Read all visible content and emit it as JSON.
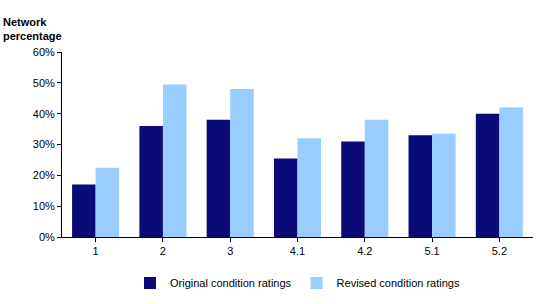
{
  "chart_data": {
    "type": "bar",
    "y_label": "Network percentage",
    "categories": [
      "1",
      "2",
      "3",
      "4.1",
      "4.2",
      "5.1",
      "5.2"
    ],
    "series": [
      {
        "name": "Original condition ratings",
        "color": "#0a0a78",
        "values": [
          17,
          36,
          38,
          25.5,
          31,
          33,
          40
        ]
      },
      {
        "name": "Revised condition ratings",
        "color": "#99ccff",
        "values": [
          22.5,
          49.5,
          48,
          32,
          38,
          33.5,
          42
        ]
      }
    ],
    "ylim": [
      0,
      60
    ],
    "yticks": [
      {
        "value": 0,
        "label": "0%"
      },
      {
        "value": 10,
        "label": "10%"
      },
      {
        "value": 20,
        "label": "20%"
      },
      {
        "value": 30,
        "label": "30%"
      },
      {
        "value": 40,
        "label": "40%"
      },
      {
        "value": 50,
        "label": "50%"
      },
      {
        "value": 60,
        "label": "60%"
      }
    ],
    "grid": false,
    "legend": "bottom"
  }
}
